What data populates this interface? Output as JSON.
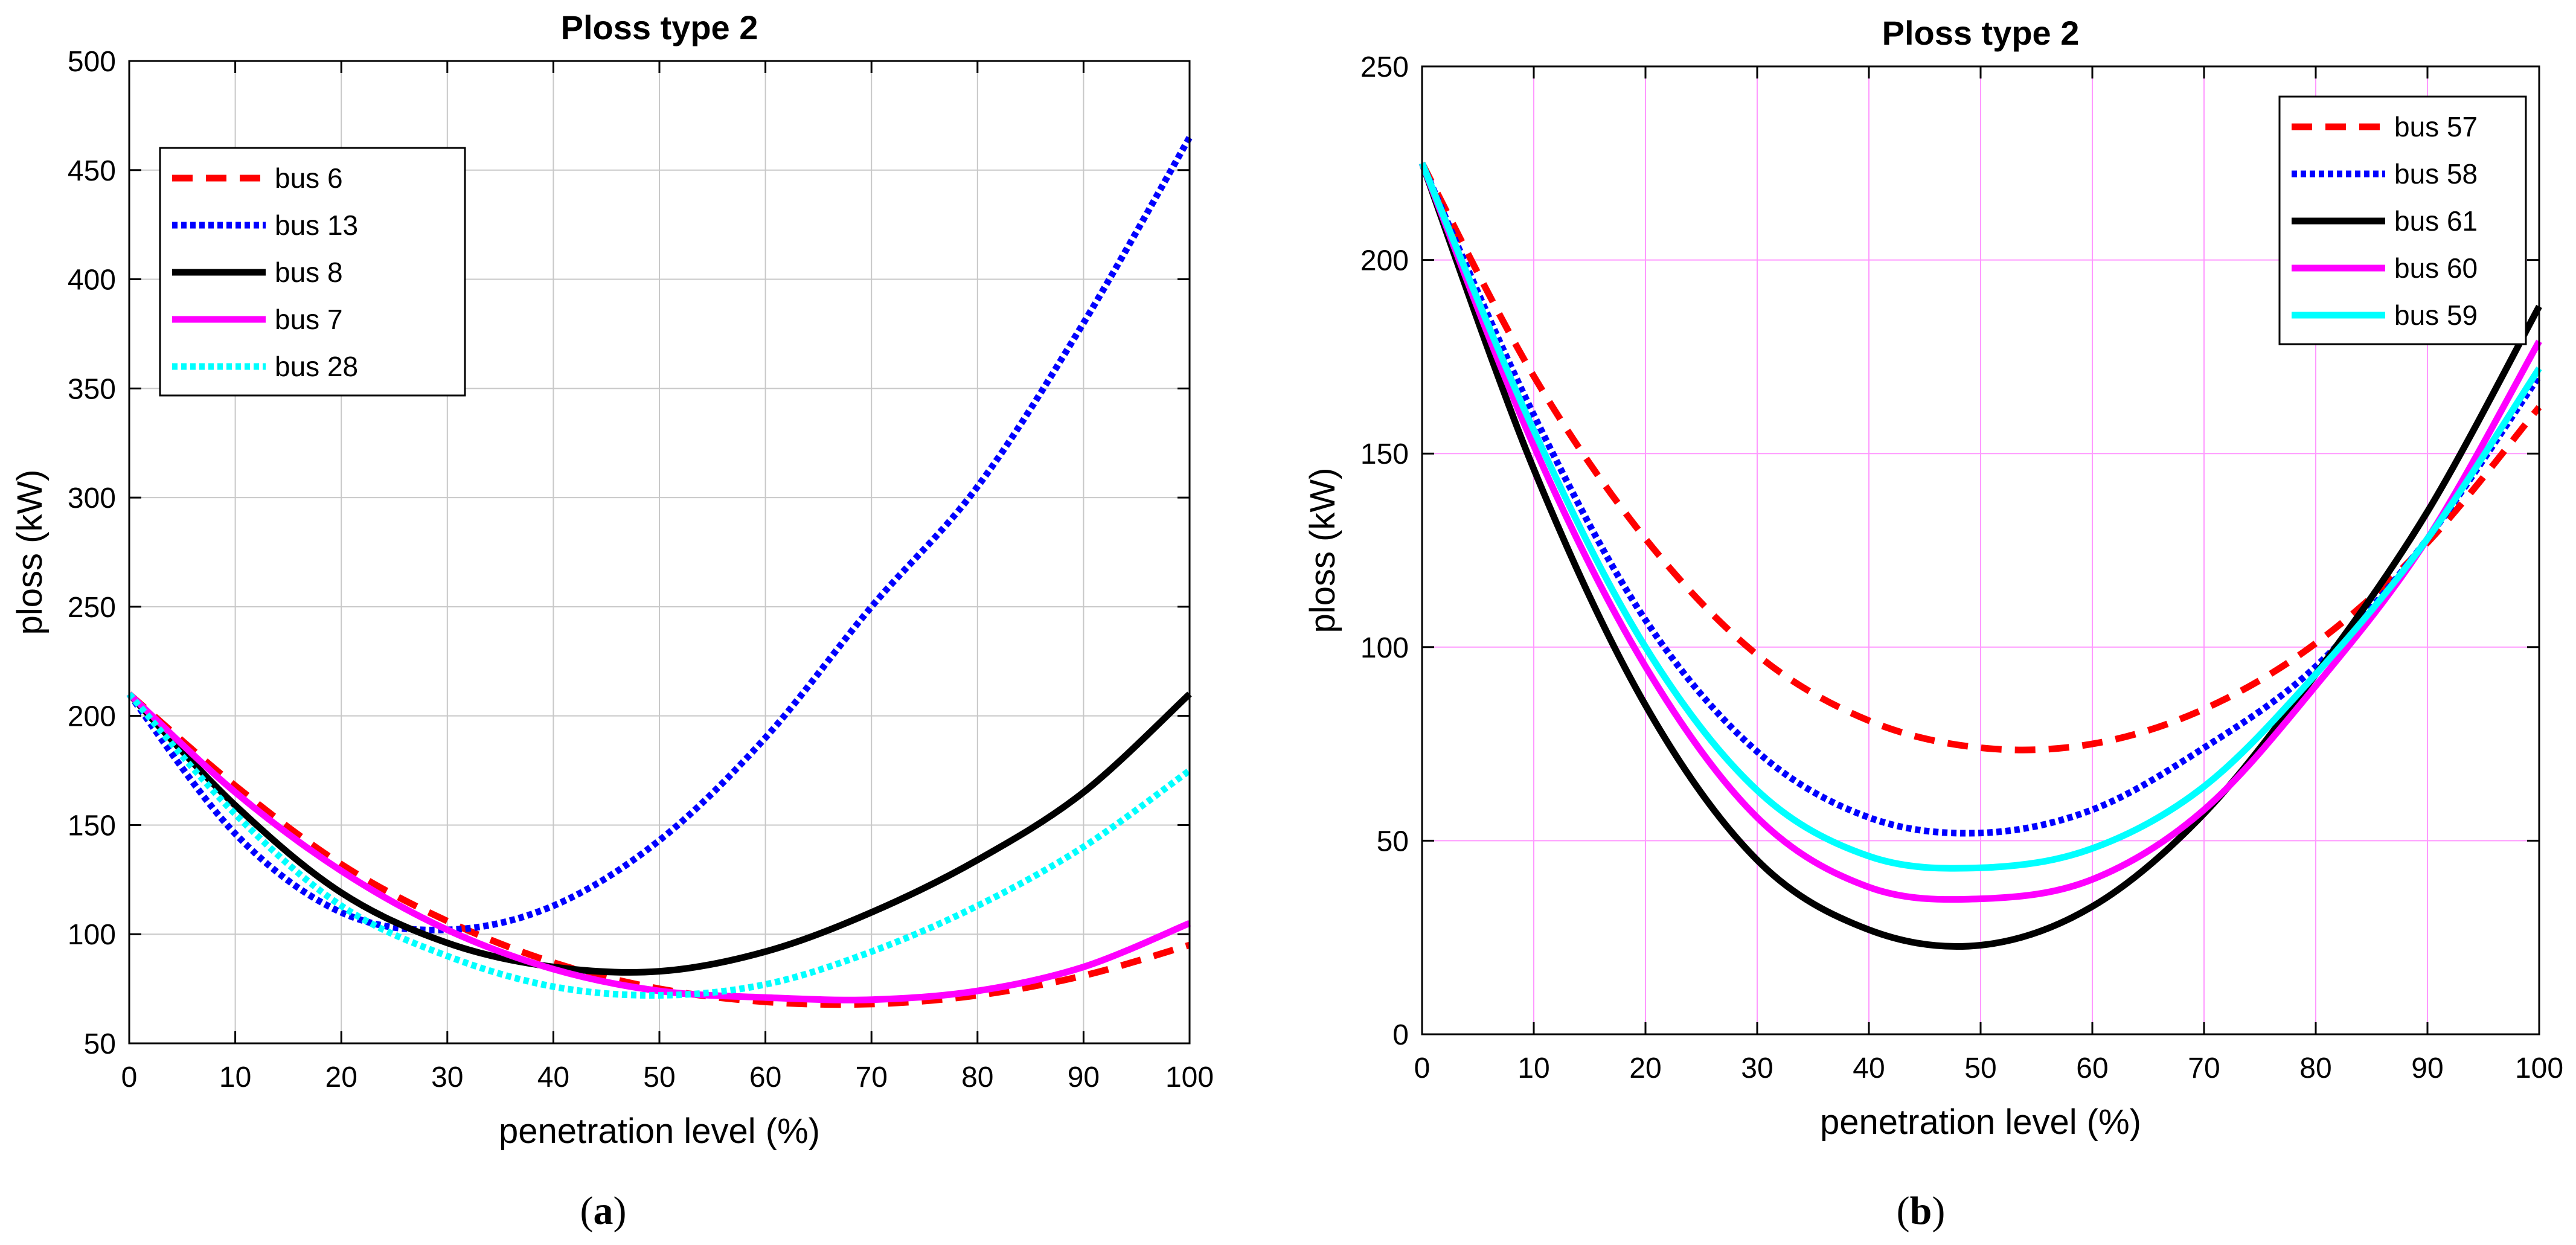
{
  "chart_data": [
    {
      "panel": "a",
      "type": "line",
      "title": "Ploss type 2",
      "xlabel": "penetration level (%)",
      "ylabel": "ploss (kW)",
      "caption_letter": "a",
      "xlim": [
        0,
        100
      ],
      "ylim": [
        50,
        500
      ],
      "xticks": [
        0,
        10,
        20,
        30,
        40,
        50,
        60,
        70,
        80,
        90,
        100
      ],
      "yticks": [
        50,
        100,
        150,
        200,
        250,
        300,
        350,
        400,
        450,
        500
      ],
      "grid": true,
      "grid_color": "#c8c8c8",
      "legend_position": "top-left",
      "x": [
        0,
        10,
        20,
        30,
        40,
        50,
        60,
        70,
        80,
        90,
        100
      ],
      "series": [
        {
          "name": "bus 6",
          "color": "#ff0000",
          "style": "dashed",
          "values": [
            210,
            168,
            132,
            106,
            87,
            75,
            69,
            68,
            72,
            81,
            95
          ]
        },
        {
          "name": "bus 13",
          "color": "#0000ff",
          "style": "dotted",
          "values": [
            210,
            146,
            110,
            102,
            113,
            143,
            190,
            250,
            305,
            380,
            465
          ]
        },
        {
          "name": "bus 8",
          "color": "#000000",
          "style": "solid",
          "values": [
            210,
            159,
            119,
            96,
            85,
            83,
            92,
            110,
            134,
            165,
            210
          ]
        },
        {
          "name": "bus 7",
          "color": "#ff00ff",
          "style": "solid",
          "values": [
            210,
            165,
            129,
            102,
            84,
            74,
            71,
            70,
            74,
            85,
            105
          ]
        },
        {
          "name": "bus 28",
          "color": "#00ffff",
          "style": "dotted",
          "values": [
            210,
            155,
            113,
            90,
            76,
            72,
            77,
            92,
            113,
            140,
            175
          ]
        }
      ]
    },
    {
      "panel": "b",
      "type": "line",
      "title": "Ploss type 2",
      "xlabel": "penetration level (%)",
      "ylabel": "ploss (kW)",
      "caption_letter": "b",
      "xlim": [
        0,
        100
      ],
      "ylim": [
        0,
        250
      ],
      "xticks": [
        0,
        10,
        20,
        30,
        40,
        50,
        60,
        70,
        80,
        90,
        100
      ],
      "yticks": [
        0,
        50,
        100,
        150,
        200,
        250
      ],
      "grid": true,
      "grid_color": "#ff99ff",
      "legend_position": "top-right",
      "x": [
        0,
        10,
        20,
        30,
        40,
        50,
        60,
        70,
        80,
        90,
        100
      ],
      "series": [
        {
          "name": "bus 57",
          "color": "#ff0000",
          "style": "dashed",
          "values": [
            225,
            170,
            128,
            98,
            81,
            74,
            75,
            84,
            101,
            127,
            162
          ]
        },
        {
          "name": "bus 58",
          "color": "#0000ff",
          "style": "dotted",
          "values": [
            225,
            160,
            107,
            73,
            56,
            52,
            58,
            74,
            95,
            128,
            170
          ]
        },
        {
          "name": "bus 61",
          "color": "#000000",
          "style": "solid",
          "values": [
            225,
            146,
            85,
            45,
            27,
            23,
            33,
            57,
            93,
            135,
            188
          ]
        },
        {
          "name": "bus 60",
          "color": "#ff00ff",
          "style": "solid",
          "values": [
            225,
            152,
            95,
            56,
            38,
            35,
            40,
            58,
            90,
            128,
            179
          ]
        },
        {
          "name": "bus 59",
          "color": "#00ffff",
          "style": "solid",
          "values": [
            225,
            156,
            100,
            63,
            46,
            43,
            48,
            64,
            93,
            128,
            172
          ]
        }
      ]
    }
  ]
}
